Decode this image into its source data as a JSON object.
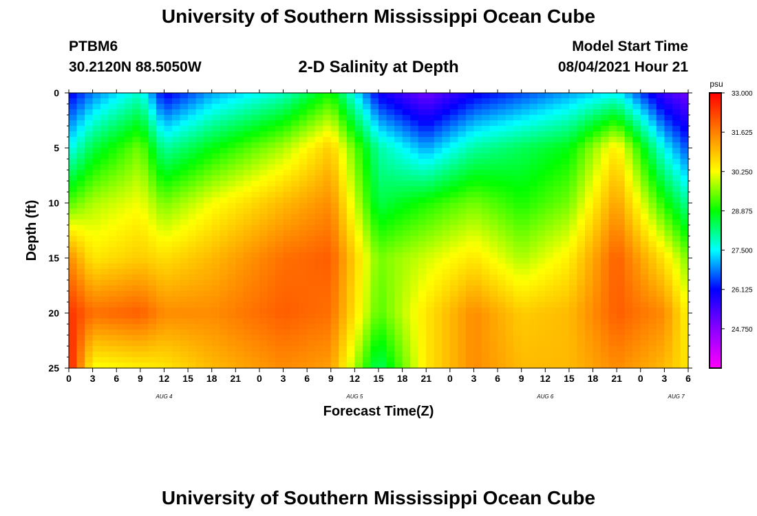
{
  "header": {
    "title": "University of Southern Mississippi Ocean Cube",
    "station": "PTBM6",
    "coords": "30.2120N  88.5050W",
    "chart_title": "2-D Salinity at Depth",
    "start_label": "Model Start Time",
    "start_value": "08/04/2021 Hour 21"
  },
  "footer": {
    "title": "University of Southern Mississippi Ocean Cube"
  },
  "chart_data": {
    "type": "heatmap",
    "title": "2-D Salinity at Depth",
    "xlabel": "Forecast Time(Z)",
    "ylabel": "Depth (ft)",
    "x_tick_labels": [
      "0",
      "3",
      "6",
      "9",
      "12",
      "15",
      "18",
      "21",
      "0",
      "3",
      "6",
      "9",
      "12",
      "15",
      "18",
      "21",
      "0",
      "3",
      "6",
      "9",
      "12",
      "15",
      "18",
      "21",
      "0",
      "3",
      "6"
    ],
    "date_labels": [
      {
        "label": "AUG 4",
        "at_tick": 4
      },
      {
        "label": "AUG 5",
        "at_tick": 12
      },
      {
        "label": "AUG 6",
        "at_tick": 20
      },
      {
        "label": "AUG 7",
        "at_tick": 25.5
      }
    ],
    "y_ticks": [
      0,
      5,
      10,
      15,
      20,
      25
    ],
    "ylim": [
      0,
      25
    ],
    "xlim": [
      0,
      78
    ],
    "colorbar": {
      "unit": "psu",
      "min": 23.375,
      "max": 33.0,
      "tick_labels": [
        "33.000",
        "31.625",
        "30.250",
        "28.875",
        "27.500",
        "26.125",
        "24.750"
      ],
      "colors": [
        "#ff00ff",
        "#8a00ff",
        "#0000ff",
        "#00ffff",
        "#00ff00",
        "#ffff00",
        "#ff8000",
        "#ff0000"
      ]
    },
    "x_hours": [
      0,
      3,
      9,
      12,
      18,
      27,
      33,
      39,
      45,
      51,
      57,
      63,
      69,
      75,
      78
    ],
    "depths_ft": [
      0,
      5,
      10,
      15,
      20,
      25
    ],
    "salinity_psu": [
      [
        26.0,
        26.8,
        27.8,
        26.0,
        27.0,
        27.8,
        29.0,
        26.0,
        25.0,
        26.0,
        26.5,
        27.0,
        27.5,
        25.5,
        25.0
      ],
      [
        27.5,
        28.5,
        29.5,
        28.0,
        28.8,
        29.8,
        30.8,
        28.0,
        27.0,
        28.0,
        28.4,
        28.8,
        30.5,
        27.5,
        26.5
      ],
      [
        29.3,
        29.8,
        30.2,
        29.5,
        30.2,
        31.0,
        31.5,
        28.5,
        29.0,
        29.5,
        29.0,
        29.5,
        31.3,
        29.0,
        28.0
      ],
      [
        31.5,
        30.5,
        30.8,
        30.6,
        31.0,
        31.8,
        32.0,
        29.5,
        30.0,
        30.5,
        29.8,
        30.4,
        32.0,
        30.5,
        29.5
      ],
      [
        32.5,
        31.8,
        32.0,
        31.5,
        31.5,
        32.0,
        31.8,
        29.3,
        30.5,
        31.5,
        30.8,
        31.0,
        32.0,
        31.5,
        30.3
      ],
      [
        32.8,
        30.2,
        30.4,
        30.5,
        31.0,
        31.5,
        31.3,
        28.3,
        30.5,
        31.5,
        31.0,
        31.0,
        31.5,
        31.0,
        30.5
      ]
    ]
  }
}
